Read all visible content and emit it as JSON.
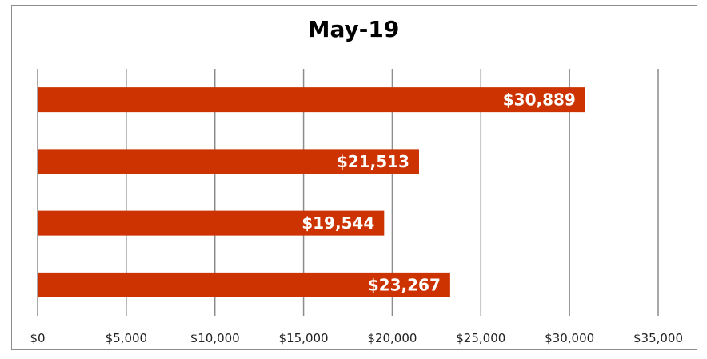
{
  "chart_data": {
    "type": "bar",
    "orientation": "horizontal",
    "title": "May-19",
    "categories": [
      "",
      "",
      "",
      ""
    ],
    "values": [
      30889,
      21513,
      19544,
      23267
    ],
    "data_labels": [
      "$30,889",
      "$21,513",
      "$19,544",
      "$23,267"
    ],
    "xlabel": "",
    "ylabel": "",
    "xlim": [
      0,
      35000
    ],
    "x_ticks": [
      0,
      5000,
      10000,
      15000,
      20000,
      25000,
      30000,
      35000
    ],
    "x_tick_labels": [
      "$0",
      "$5,000",
      "$10,000",
      "$15,000",
      "$20,000",
      "$25,000",
      "$30,000",
      "$35,000"
    ],
    "grid": true,
    "legend": "none",
    "bar_color": "#cc3300",
    "grid_color": "#8c8c8c"
  }
}
